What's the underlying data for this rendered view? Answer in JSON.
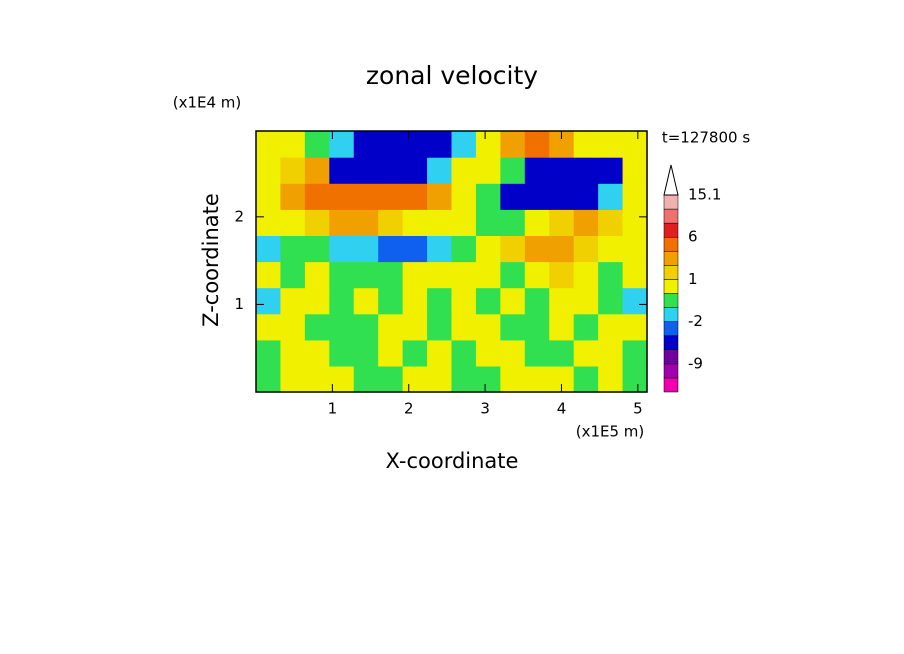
{
  "chart_data": {
    "type": "contour",
    "title": "zonal velocity",
    "xlabel": "X-coordinate",
    "ylabel": "Z-coordinate",
    "x_unit": "(x1E5 m)",
    "y_unit": "(x1E4 m)",
    "time_label": "t=127800 s",
    "xlim": [
      0,
      5.12
    ],
    "ylim": [
      0,
      2.98
    ],
    "xticks": [
      1,
      2,
      3,
      4,
      5
    ],
    "yticks": [
      1,
      2
    ],
    "z": [
      [
        -0.5,
        0.5,
        0.5,
        0.5,
        -0.5,
        -0.5,
        0.5,
        0.5,
        -0.5,
        -0.5,
        0.5,
        0.5,
        0.5,
        -0.5,
        0.5,
        -0.5
      ],
      [
        -0.5,
        0.5,
        0.5,
        -0.5,
        -0.5,
        0.5,
        -0.5,
        0.5,
        -0.5,
        0.5,
        0.5,
        -0.5,
        -0.5,
        0.5,
        0.5,
        -0.5
      ],
      [
        0.5,
        0.5,
        -0.5,
        -0.5,
        -0.5,
        0.5,
        0.5,
        -0.5,
        0.5,
        0.5,
        -0.5,
        -0.5,
        0.5,
        -0.5,
        0.5,
        0.5
      ],
      [
        -1.5,
        0.5,
        0.5,
        -0.5,
        0.5,
        -0.5,
        0.5,
        -0.5,
        0.5,
        -0.5,
        0.5,
        -0.5,
        0.5,
        0.5,
        -0.5,
        -1.5
      ],
      [
        0.5,
        -0.5,
        0.5,
        -0.5,
        -0.5,
        -0.5,
        0.5,
        0.5,
        0.5,
        0.5,
        -0.5,
        0.5,
        1.5,
        0.5,
        -0.5,
        0.5
      ],
      [
        -1.5,
        -0.5,
        -0.5,
        -1.5,
        -1.5,
        -4,
        -4,
        -1.5,
        -0.5,
        0.5,
        1.5,
        3,
        3,
        1.5,
        0.5,
        0.5
      ],
      [
        0.5,
        0.5,
        1.5,
        3,
        3,
        1.5,
        0.5,
        0.5,
        0.5,
        -0.5,
        -0.5,
        0.5,
        1.5,
        2.5,
        1.5,
        0.5
      ],
      [
        0.5,
        3,
        5,
        5,
        5,
        5,
        5,
        3,
        0.5,
        -0.5,
        -5,
        -6,
        -6,
        -6,
        -1.5,
        0.5
      ],
      [
        0.5,
        1.5,
        3,
        -5,
        -6,
        -6,
        -5,
        -1.5,
        0.5,
        0.5,
        -1,
        -5,
        -6,
        -6,
        -5,
        0.5
      ],
      [
        0.5,
        0.5,
        -0.5,
        -1.5,
        -5,
        -6,
        -6,
        -5,
        -1.5,
        0.5,
        3,
        4,
        3,
        0.5,
        0.5,
        0.5
      ]
    ],
    "colorbar": {
      "bounds": [
        -15,
        -12,
        -9,
        -6,
        -4,
        -2,
        -1,
        0,
        1,
        2,
        4,
        6,
        9,
        12,
        15.1
      ],
      "colors": [
        "#f000b0",
        "#a000b0",
        "#7000a0",
        "#0000c8",
        "#1060f0",
        "#30d0f0",
        "#30e050",
        "#f0f000",
        "#f0d000",
        "#f0a000",
        "#f07000",
        "#e02020",
        "#f07070",
        "#f0b0b0"
      ],
      "over_color": "#ffffff",
      "ticks": [
        15.1,
        6,
        1,
        -2,
        -9
      ]
    }
  }
}
